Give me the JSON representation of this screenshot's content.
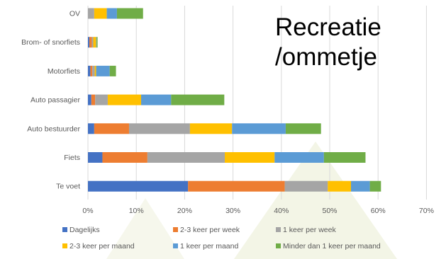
{
  "overlay": {
    "line1": "Recreatie",
    "line2": "/ommetje"
  },
  "chart_data": {
    "type": "bar",
    "orientation": "horizontal",
    "stacked": true,
    "categories": [
      "OV",
      "Brom- of snorfiets",
      "Motorfiets",
      "Auto passagier",
      "Auto bestuurder",
      "Fiets",
      "Te voet"
    ],
    "x_ticks": [
      "0%",
      "10%",
      "20%",
      "30%",
      "40%",
      "50%",
      "60%",
      "70%"
    ],
    "xlim": [
      0,
      70
    ],
    "grid": "vertical",
    "legend_position": "bottom",
    "series": [
      {
        "name": "Dagelijks",
        "color": "#4472c4",
        "values": [
          0,
          0.3,
          0.5,
          0.7,
          1.3,
          3.0,
          20.7
        ]
      },
      {
        "name": "2-3 keer per week",
        "color": "#ed7d31",
        "values": [
          0,
          0.5,
          0.4,
          0.8,
          7.2,
          9.3,
          20.0
        ]
      },
      {
        "name": "1 keer per week",
        "color": "#a5a5a5",
        "values": [
          1.3,
          0.3,
          0.5,
          2.6,
          12.6,
          16.0,
          8.9
        ]
      },
      {
        "name": "2-3 keer per maand",
        "color": "#ffc000",
        "values": [
          2.6,
          0.6,
          0.3,
          6.9,
          8.7,
          10.3,
          4.8
        ]
      },
      {
        "name": "1 keer per maand",
        "color": "#5b9bd5",
        "values": [
          2.1,
          0.1,
          2.8,
          6.2,
          11.1,
          10.2,
          3.9
        ]
      },
      {
        "name": "Minder dan 1 keer per maand",
        "color": "#70ad47",
        "values": [
          5.4,
          0.2,
          1.3,
          11.0,
          7.3,
          8.6,
          2.3
        ]
      }
    ]
  }
}
